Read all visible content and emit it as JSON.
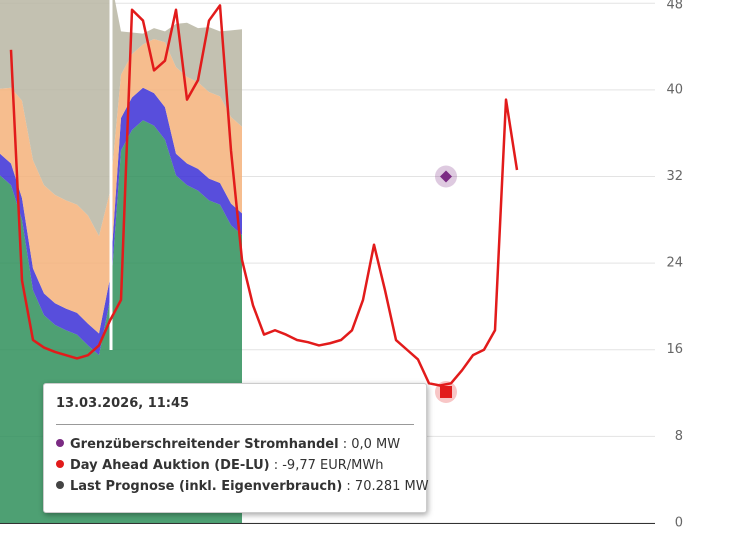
{
  "chart_data": {
    "type": "area",
    "categories": [
      null,
      null,
      null,
      null,
      null,
      null,
      null,
      null,
      null,
      null,
      null,
      null,
      null,
      null,
      null,
      null,
      null,
      null,
      null,
      null,
      null,
      null,
      null,
      null,
      null,
      null,
      null,
      null,
      null,
      null,
      null,
      null,
      null,
      null,
      null,
      null,
      null,
      null,
      null,
      null,
      null,
      null,
      null,
      null,
      null,
      null,
      null,
      null,
      null,
      null,
      null,
      null,
      null,
      null,
      null,
      null,
      null,
      null,
      null,
      null
    ],
    "series": [
      {
        "color": "#2f8f5a",
        "values": [
          32.1,
          31.2,
          28.0,
          21.5,
          19.2,
          18.3,
          17.8,
          17.4,
          16.4,
          15.5,
          20.6,
          34.4,
          36.3,
          37.2,
          36.7,
          35.4,
          32.1,
          31.2,
          30.7,
          29.8,
          29.4,
          27.5,
          26.6,
          null,
          null,
          null,
          null,
          null,
          null,
          null,
          null,
          null,
          null,
          null,
          null,
          null,
          null,
          null,
          null,
          null,
          null,
          null,
          null,
          null,
          null,
          null,
          null,
          null,
          null,
          null,
          null,
          null,
          null,
          null,
          null,
          null,
          null,
          null,
          null,
          null
        ]
      },
      {
        "color": "#3b2fd6",
        "values": [
          2,
          2,
          2,
          2,
          2,
          2,
          2,
          2,
          2,
          2,
          2,
          3,
          3,
          3,
          3,
          3,
          2,
          2,
          2,
          2,
          2,
          2,
          2,
          null,
          null,
          null,
          null,
          null,
          null,
          null,
          null,
          null,
          null,
          null,
          null,
          null,
          null,
          null,
          null,
          null,
          null,
          null,
          null,
          null,
          null,
          null,
          null,
          null,
          null,
          null,
          null,
          null,
          null,
          null,
          null,
          null,
          null,
          null,
          null,
          null
        ]
      },
      {
        "color": "#f5b27a",
        "values": [
          6,
          7,
          9,
          10,
          10,
          10,
          10,
          10,
          10,
          9,
          8,
          4,
          4,
          4,
          5,
          6,
          8,
          8,
          8,
          8,
          8,
          8,
          8,
          null,
          null,
          null,
          null,
          null,
          null,
          null,
          null,
          null,
          null,
          null,
          null,
          null,
          null,
          null,
          null,
          null,
          null,
          null,
          null,
          null,
          null,
          null,
          null,
          null,
          null,
          null,
          null,
          null,
          null,
          null,
          null,
          null,
          null,
          null,
          null,
          null
        ]
      },
      {
        "color": "#b9b6a3",
        "values": [
          10,
          10,
          11,
          17,
          19,
          20,
          20,
          21,
          22,
          24,
          20,
          4,
          2,
          1,
          1,
          1,
          4,
          5,
          5,
          6,
          6,
          8,
          9,
          null,
          null,
          null,
          null,
          null,
          null,
          null,
          null,
          null,
          null,
          null,
          null,
          null,
          null,
          null,
          null,
          null,
          null,
          null,
          null,
          null,
          null,
          null,
          null,
          null,
          null,
          null,
          null,
          null,
          null,
          null,
          null,
          null,
          null,
          null,
          null,
          null
        ]
      },
      {
        "name": "Day Ahead Auktion (DE-LU)",
        "color": "#e21b1b",
        "line": true,
        "values": [
          null,
          43.7,
          22.4,
          16.9,
          16.2,
          15.8,
          15.5,
          15.2,
          15.5,
          16.4,
          18.7,
          20.6,
          47.4,
          46.4,
          41.8,
          42.7,
          47.4,
          39.1,
          40.9,
          46.4,
          47.8,
          34.4,
          24.3,
          20.1,
          17.4,
          17.8,
          17.4,
          16.9,
          16.7,
          16.4,
          16.6,
          16.9,
          17.8,
          20.6,
          25.7,
          21.5,
          16.9,
          16.0,
          15.1,
          12.9,
          12.7,
          12.9,
          14.1,
          15.5,
          16.0,
          17.8,
          39.1,
          32.6,
          null,
          null,
          null,
          null,
          null,
          null,
          null,
          null,
          null,
          null,
          null,
          null
        ]
      }
    ],
    "markers": [
      {
        "value": 32.0,
        "color": "#7b2b83",
        "shape": "diamond"
      },
      {
        "value": 12.1,
        "color": "#e21b1b",
        "shape": "square"
      }
    ],
    "ylim": [
      0,
      48.3
    ],
    "yticks": [
      0,
      8,
      16,
      24,
      32,
      40,
      48
    ],
    "grid": true
  },
  "tooltip": {
    "title": "13.03.2026, 11:45",
    "rows": [
      {
        "color": "#7b2b83",
        "name": "Grenzüberschreitender Stromhandel",
        "value": ": 0,0 MW"
      },
      {
        "color": "#e21b1b",
        "name": "Day Ahead Auktion (DE-LU)",
        "value": ": -9,77 EUR/MWh"
      },
      {
        "color": "#444444",
        "name": "Last Prognose (inkl. Eigenverbrauch)",
        "value": ": 70.281 MW"
      }
    ]
  }
}
